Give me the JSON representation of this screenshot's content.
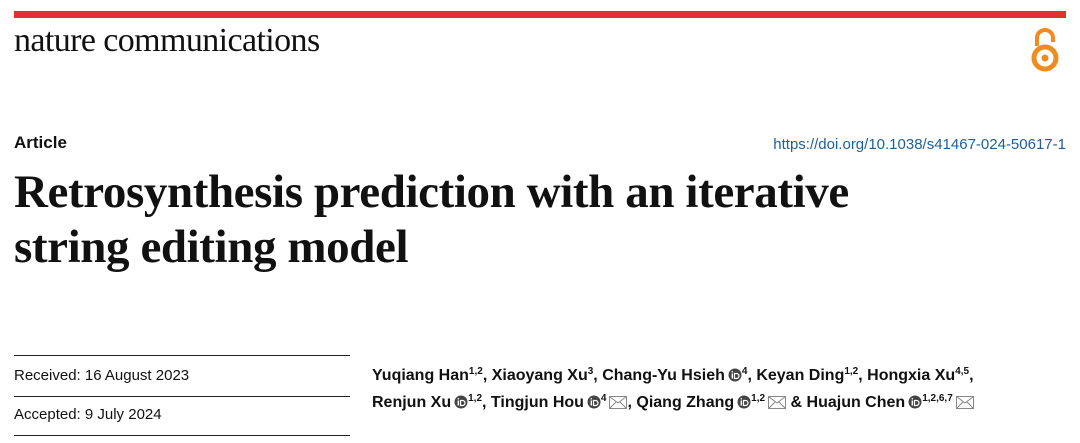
{
  "journal": "nature communications",
  "article_type": "Article",
  "doi": "https://doi.org/10.1038/s41467-024-50617-1",
  "title_lines": [
    "Retrosynthesis prediction with an iterative",
    "string editing model"
  ],
  "dates": [
    "Received: 16 August 2023",
    "Accepted: 9 July 2024"
  ],
  "authors": [
    [
      {
        "name": "Yuqiang Han",
        "affiliations": "1,2",
        "orcid": false,
        "email": false,
        "sep": ", "
      },
      {
        "name": "Xiaoyang Xu",
        "affiliations": "3",
        "orcid": false,
        "email": false,
        "sep": ", "
      },
      {
        "name": "Chang-Yu Hsieh",
        "affiliations": "4",
        "orcid": true,
        "email": false,
        "sep": ", "
      },
      {
        "name": "Keyan Ding",
        "affiliations": "1,2",
        "orcid": false,
        "email": false,
        "sep": ", "
      },
      {
        "name": "Hongxia Xu",
        "affiliations": "4,5",
        "orcid": false,
        "email": false,
        "sep": ","
      }
    ],
    [
      {
        "name": "Renjun Xu",
        "affiliations": "1,2",
        "orcid": true,
        "email": false,
        "sep": ", "
      },
      {
        "name": "Tingjun Hou",
        "affiliations": "4",
        "orcid": true,
        "email": true,
        "sep": ", "
      },
      {
        "name": "Qiang Zhang",
        "affiliations": "1,2",
        "orcid": true,
        "email": true,
        "sep": " & "
      },
      {
        "name": "Huajun Chen",
        "affiliations": "1,2,6,7",
        "orcid": true,
        "email": true
      }
    ]
  ]
}
